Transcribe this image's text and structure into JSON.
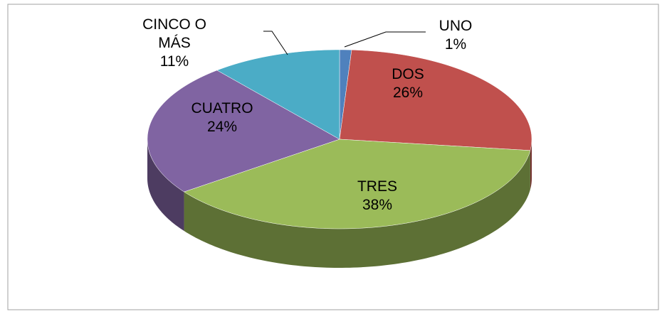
{
  "chart_data": {
    "type": "pie",
    "categories": [
      "UNO",
      "DOS",
      "TRES",
      "CUATRO",
      "CINCO O MÁS"
    ],
    "values": [
      1,
      26,
      38,
      24,
      11
    ],
    "value_labels": [
      "1%",
      "26%",
      "38%",
      "24%",
      "11%"
    ],
    "colors": [
      "#4f81bd",
      "#c0504d",
      "#9bbb59",
      "#8064a2",
      "#4bacc6"
    ]
  }
}
